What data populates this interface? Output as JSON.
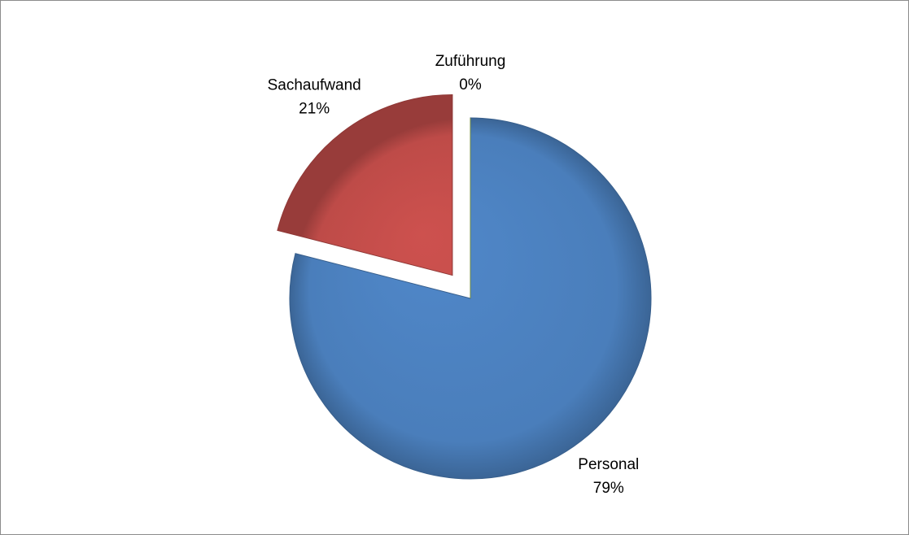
{
  "chart_data": {
    "type": "pie",
    "categories": [
      "Personal",
      "Sachaufwand",
      "Zuführung"
    ],
    "values": [
      79,
      21,
      0
    ],
    "value_labels": [
      "79%",
      "21%",
      "0%"
    ],
    "colors": [
      "#4a7ebb",
      "#be4b48",
      "#98b954"
    ],
    "explode": [
      false,
      true,
      false
    ],
    "start_angle": 0,
    "direction": "clockwise"
  }
}
